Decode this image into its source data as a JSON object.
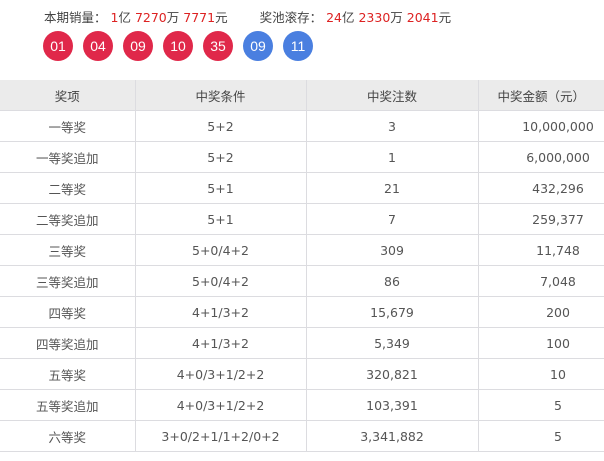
{
  "summary": {
    "sales_label": "本期销量：",
    "sales": [
      {
        "n": "1",
        "u": "亿"
      },
      {
        "n": "7270",
        "u": "万"
      },
      {
        "n": "7771",
        "u": "元"
      }
    ],
    "pool_label": "奖池滚存：",
    "pool": [
      {
        "n": "24",
        "u": "亿"
      },
      {
        "n": "2330",
        "u": "万"
      },
      {
        "n": "2041",
        "u": "元"
      }
    ]
  },
  "balls": {
    "front": [
      "01",
      "04",
      "09",
      "10",
      "35"
    ],
    "back": [
      "09",
      "11"
    ],
    "front_color": "#e0284a",
    "back_color": "#4a7fe0"
  },
  "table": {
    "headers": [
      "奖项",
      "中奖条件",
      "中奖注数",
      "中奖金额（元）"
    ],
    "rows": [
      [
        "一等奖",
        "5+2",
        "3",
        "10,000,000"
      ],
      [
        "一等奖追加",
        "5+2",
        "1",
        "6,000,000"
      ],
      [
        "二等奖",
        "5+1",
        "21",
        "432,296"
      ],
      [
        "二等奖追加",
        "5+1",
        "7",
        "259,377"
      ],
      [
        "三等奖",
        "5+0/4+2",
        "309",
        "11,748"
      ],
      [
        "三等奖追加",
        "5+0/4+2",
        "86",
        "7,048"
      ],
      [
        "四等奖",
        "4+1/3+2",
        "15,679",
        "200"
      ],
      [
        "四等奖追加",
        "4+1/3+2",
        "5,349",
        "100"
      ],
      [
        "五等奖",
        "4+0/3+1/2+2",
        "320,821",
        "10"
      ],
      [
        "五等奖追加",
        "4+0/3+1/2+2",
        "103,391",
        "5"
      ],
      [
        "六等奖",
        "3+0/2+1/1+2/0+2",
        "3,341,882",
        "5"
      ]
    ]
  }
}
